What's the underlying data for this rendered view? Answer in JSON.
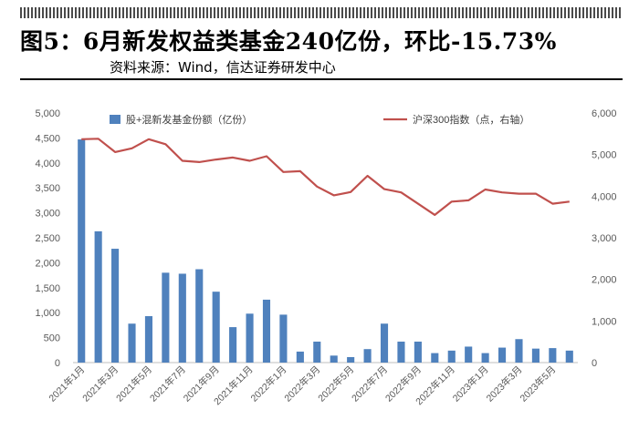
{
  "figure": {
    "title": "图5：6月新发权益类基金240亿份，环比-15.73%",
    "source": "资料来源：Wind，信达证券研发中心"
  },
  "chart_data": {
    "type": "bar",
    "categories": [
      "2021年1月",
      "2021年2月",
      "2021年3月",
      "2021年4月",
      "2021年5月",
      "2021年6月",
      "2021年7月",
      "2021年8月",
      "2021年9月",
      "2021年10月",
      "2021年11月",
      "2021年12月",
      "2022年1月",
      "2022年2月",
      "2022年3月",
      "2022年4月",
      "2022年5月",
      "2022年6月",
      "2022年7月",
      "2022年8月",
      "2022年9月",
      "2022年10月",
      "2022年11月",
      "2022年12月",
      "2023年1月",
      "2023年2月",
      "2023年3月",
      "2023年4月",
      "2023年5月",
      "2023年6月"
    ],
    "x_tick_labels": [
      "2021年1月",
      "2021年3月",
      "2021年5月",
      "2021年7月",
      "2021年9月",
      "2021年11月",
      "2022年1月",
      "2022年3月",
      "2022年5月",
      "2022年7月",
      "2022年9月",
      "2022年11月",
      "2023年1月",
      "2023年3月",
      "2023年5月"
    ],
    "series": [
      {
        "name": "股+混新发基金份额（亿份）",
        "type": "bar",
        "axis": "left",
        "color": "#4f81bd",
        "values": [
          4470,
          2630,
          2280,
          780,
          930,
          1800,
          1780,
          1870,
          1420,
          710,
          980,
          1260,
          960,
          220,
          420,
          140,
          110,
          270,
          780,
          420,
          420,
          190,
          240,
          320,
          190,
          300,
          470,
          280,
          290,
          240
        ]
      },
      {
        "name": "沪深300指数（点，右轴）",
        "type": "line",
        "axis": "right",
        "color": "#c0504d",
        "values": [
          5370,
          5380,
          5060,
          5150,
          5370,
          5250,
          4850,
          4820,
          4880,
          4930,
          4850,
          4960,
          4580,
          4600,
          4230,
          4020,
          4100,
          4490,
          4170,
          4090,
          3820,
          3550,
          3870,
          3900,
          4160,
          4090,
          4060,
          4060,
          3820,
          3870
        ]
      }
    ],
    "y_left": {
      "min": 0,
      "max": 5000,
      "step": 500,
      "ticks": [
        "0",
        "500",
        "1,000",
        "1,500",
        "2,000",
        "2,500",
        "3,000",
        "3,500",
        "4,000",
        "4,500",
        "5,000"
      ]
    },
    "y_right": {
      "min": 0,
      "max": 6000,
      "step": 1000,
      "ticks": [
        "0",
        "1,000",
        "2,000",
        "3,000",
        "4,000",
        "5,000",
        "6,000"
      ]
    },
    "legend_position": "top",
    "grid": false
  }
}
